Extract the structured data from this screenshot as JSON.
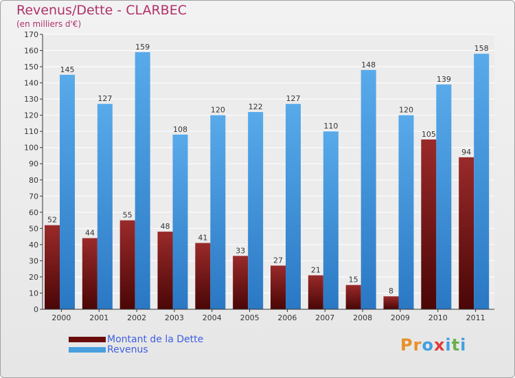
{
  "header": {
    "title": "Revenus/Dette - CLARBEC",
    "subtitle": "(en milliers d'€)"
  },
  "colors": {
    "title": "#b0306a",
    "dette": "#7a1414",
    "revenus": "#4a9fe0",
    "legend_text": "#3f5fe0"
  },
  "chart_data": {
    "type": "bar",
    "categories": [
      "2000",
      "2001",
      "2002",
      "2003",
      "2004",
      "2005",
      "2006",
      "2007",
      "2008",
      "2009",
      "2010",
      "2011"
    ],
    "series": [
      {
        "name": "Montant de la Dette",
        "values": [
          52,
          44,
          55,
          48,
          41,
          33,
          27,
          21,
          15,
          8,
          105,
          94
        ]
      },
      {
        "name": "Revenus",
        "values": [
          145,
          127,
          159,
          108,
          120,
          122,
          127,
          110,
          148,
          120,
          139,
          158
        ]
      }
    ],
    "ylim": [
      0,
      170
    ],
    "yticks": [
      0,
      10,
      20,
      30,
      40,
      50,
      60,
      70,
      80,
      90,
      100,
      110,
      120,
      130,
      140,
      150,
      160,
      170
    ],
    "grid": true,
    "legend_position": "bottom-left"
  },
  "logo": {
    "letters": [
      "P",
      "r",
      "o",
      "x",
      "i",
      "t",
      "i"
    ],
    "colors": [
      "#e8902a",
      "#e8902a",
      "#3fa0e0",
      "#e03a3a",
      "#3fa0e0",
      "#6ab04c",
      "#3fa0e0"
    ]
  }
}
